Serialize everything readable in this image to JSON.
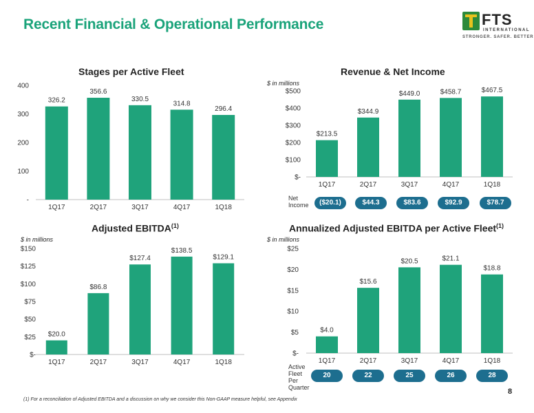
{
  "header": {
    "title": "Recent Financial & Operational Performance",
    "logo": {
      "name": "FTS",
      "sub": "INTERNATIONAL",
      "tagline": "STRONGER. SAFER. BETTER"
    }
  },
  "panels": {
    "stages": {
      "title": "Stages per Active Fleet"
    },
    "revenue": {
      "title": "Revenue & Net Income",
      "unit": "$ in millions"
    },
    "ebitda": {
      "title": "Adjusted EBITDA",
      "sup": "(1)",
      "unit": "$ in millions"
    },
    "annual": {
      "title": "Annualized Adjusted EBITDA per Active Fleet",
      "sup": "(1)",
      "unit": "$ in millions"
    }
  },
  "net_income": {
    "label_line1": "Net",
    "label_line2": "Income",
    "values": [
      "($20.1)",
      "$44.3",
      "$83.6",
      "$92.9",
      "$78.7"
    ]
  },
  "active_fleet": {
    "label_lines": [
      "Active",
      "Fleet",
      "Per",
      "Quarter"
    ],
    "values": [
      "20",
      "22",
      "25",
      "26",
      "28"
    ]
  },
  "footer": {
    "footnote": "(1)    For a reconciliation of Adjusted EBITDA and a discussion on why we consider this Non-GAAP measure helpful, see Appendix",
    "page": "8"
  },
  "colors": {
    "bar": "#1fa37b",
    "accent": "#1aa37a",
    "pill": "#1d6e8f"
  },
  "chart_data": [
    {
      "type": "bar",
      "id": "stages",
      "title": "Stages per Active Fleet",
      "categories": [
        "1Q17",
        "2Q17",
        "3Q17",
        "4Q17",
        "1Q18"
      ],
      "values": [
        326.2,
        356.6,
        330.5,
        314.8,
        296.4
      ],
      "labels": [
        "326.2",
        "356.6",
        "330.5",
        "314.8",
        "296.4"
      ],
      "ylim": [
        0,
        400
      ],
      "yticks": [
        0,
        100,
        200,
        300,
        400
      ],
      "yticklabels": [
        "-",
        "100",
        "200",
        "300",
        "400"
      ]
    },
    {
      "type": "bar",
      "id": "revenue",
      "title": "Revenue & Net Income",
      "categories": [
        "1Q17",
        "2Q17",
        "3Q17",
        "4Q17",
        "1Q18"
      ],
      "values": [
        213.5,
        344.9,
        449.0,
        458.7,
        467.5
      ],
      "labels": [
        "$213.5",
        "$344.9",
        "$449.0",
        "$458.7",
        "$467.5"
      ],
      "ylim": [
        0,
        500
      ],
      "yticks": [
        0,
        100,
        200,
        300,
        400,
        500
      ],
      "yticklabels": [
        "$-",
        "$100",
        "$200",
        "$300",
        "$400",
        "$500"
      ]
    },
    {
      "type": "bar",
      "id": "ebitda",
      "title": "Adjusted EBITDA",
      "categories": [
        "1Q17",
        "2Q17",
        "3Q17",
        "4Q17",
        "1Q18"
      ],
      "values": [
        20.0,
        86.8,
        127.4,
        138.5,
        129.1
      ],
      "labels": [
        "$20.0",
        "$86.8",
        "$127.4",
        "$138.5",
        "$129.1"
      ],
      "ylim": [
        0,
        150
      ],
      "yticks": [
        0,
        25,
        50,
        75,
        100,
        125,
        150
      ],
      "yticklabels": [
        "$-",
        "$25",
        "$50",
        "$75",
        "$100",
        "$125",
        "$150"
      ]
    },
    {
      "type": "bar",
      "id": "annual",
      "title": "Annualized Adjusted EBITDA per Active Fleet",
      "categories": [
        "1Q17",
        "2Q17",
        "3Q17",
        "4Q17",
        "1Q18"
      ],
      "values": [
        4.0,
        15.6,
        20.5,
        21.1,
        18.8
      ],
      "labels": [
        "$4.0",
        "$15.6",
        "$20.5",
        "$21.1",
        "$18.8"
      ],
      "ylim": [
        0,
        25
      ],
      "yticks": [
        0,
        5,
        10,
        15,
        20,
        25
      ],
      "yticklabels": [
        "$-",
        "$5",
        "$10",
        "$15",
        "$20",
        "$25"
      ]
    }
  ]
}
